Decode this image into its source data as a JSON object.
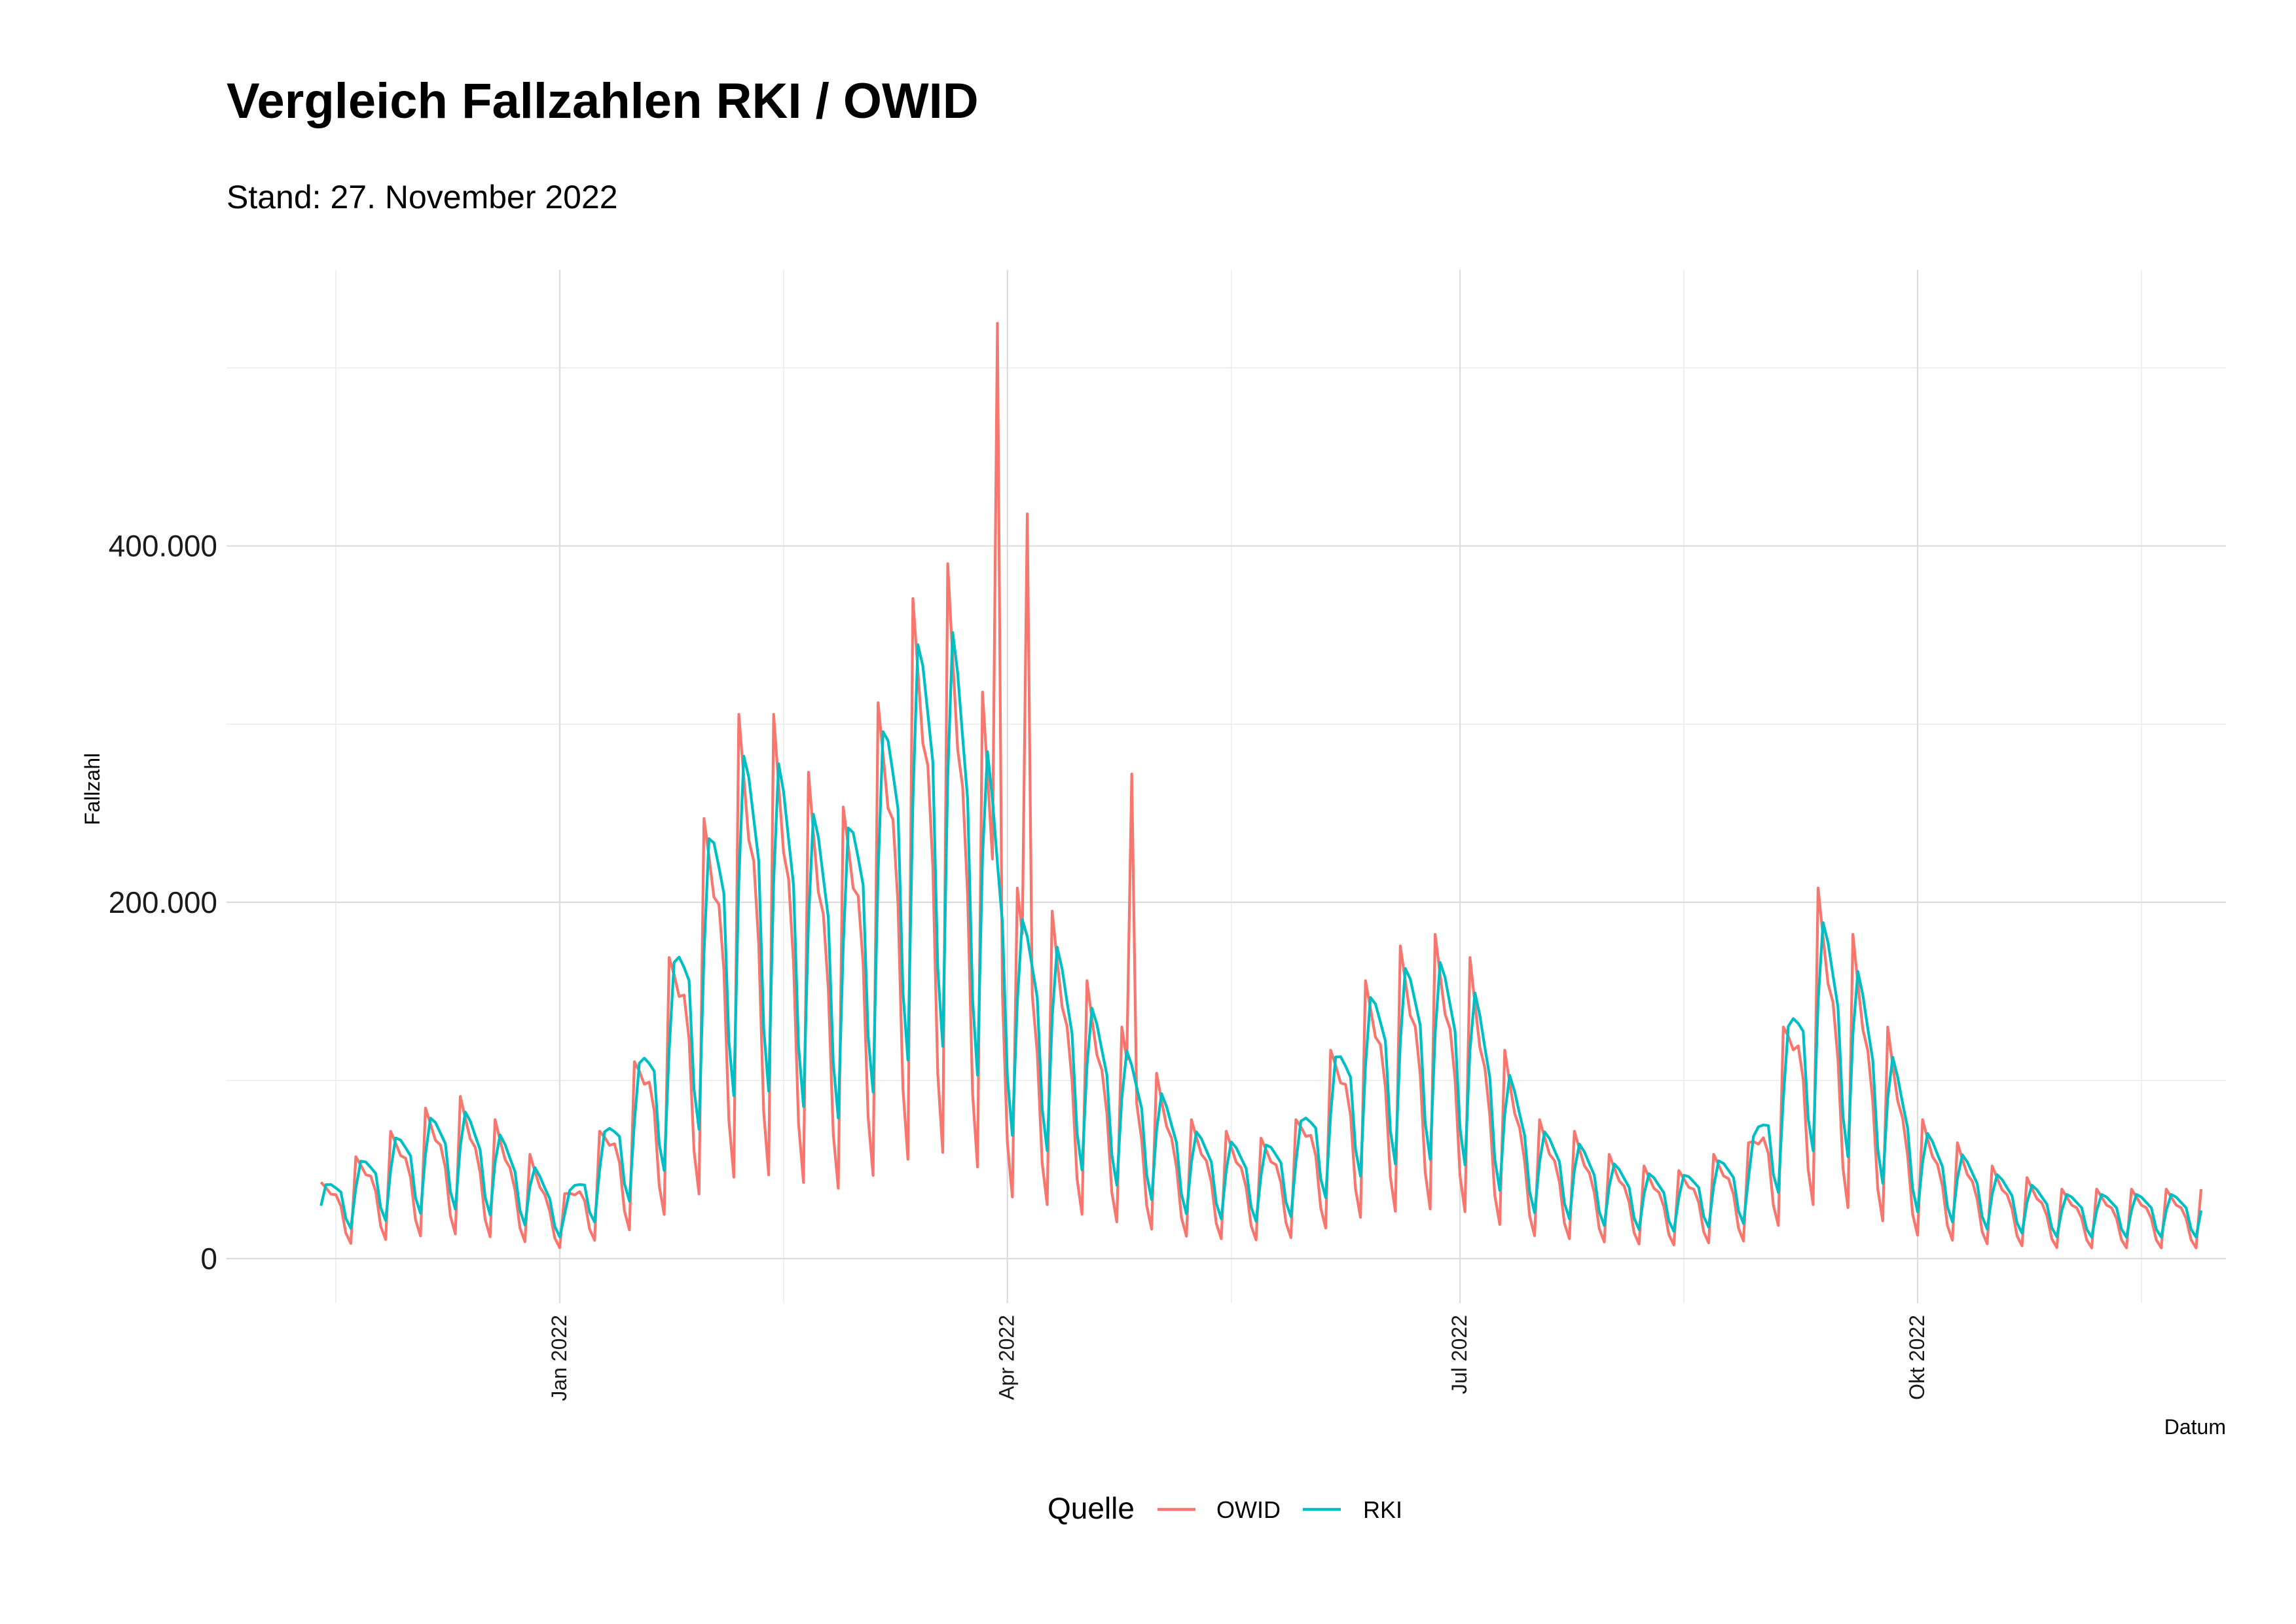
{
  "chart_data": {
    "type": "line",
    "title": "Vergleich Fallzahlen  RKI / OWID",
    "subtitle": "Stand: 27. November 2022",
    "xlabel": "Datum",
    "ylabel": "Fallzahl",
    "x_tick_labels": [
      "Jan 2022",
      "Apr 2022",
      "Jul 2022",
      "Okt 2022"
    ],
    "x_tick_dates": [
      "2022-01-01",
      "2022-04-01",
      "2022-07-01",
      "2022-10-01"
    ],
    "x_range": [
      "2021-10-26",
      "2022-12-02"
    ],
    "y_tick_labels": [
      "0",
      "200.000",
      "400.000"
    ],
    "y_tick_values": [
      0,
      200000,
      400000
    ],
    "ylim": [
      -25000,
      555000
    ],
    "grid": true,
    "legend": {
      "title": "Quelle",
      "position": "bottom",
      "entries": [
        "OWID",
        "RKI"
      ]
    },
    "series": [
      {
        "name": "OWID",
        "color": "#F8766D",
        "start_date": "2021-11-14",
        "end_date": "2022-11-27",
        "step": "day",
        "weekly_pattern": [
          1.3,
          1.15,
          1.0,
          0.95,
          0.75,
          0.35,
          0.2
        ],
        "weekly_level": [
          33000,
          44000,
          55000,
          65000,
          70000,
          60000,
          45000,
          28000,
          55000,
          85000,
          130000,
          190000,
          235000,
          235000,
          210000,
          195000,
          240000,
          285000,
          300000,
          250000,
          160000,
          150000,
          120000,
          100000,
          80000,
          60000,
          55000,
          52000,
          60000,
          90000,
          120000,
          135000,
          140000,
          130000,
          90000,
          60000,
          55000,
          45000,
          40000,
          38000,
          45000,
          50000,
          100000,
          160000,
          140000,
          100000,
          60000,
          50000,
          40000,
          35000,
          30000
        ],
        "spikes": [
          {
            "date": "2022-03-30",
            "value": 525000
          },
          {
            "date": "2022-04-05",
            "value": 418000
          },
          {
            "date": "2022-04-26",
            "value": 272000
          },
          {
            "date": "2022-03-27",
            "value": 318000
          }
        ]
      },
      {
        "name": "RKI",
        "color": "#00BFC4",
        "start_date": "2021-11-14",
        "end_date": "2022-11-27",
        "step": "day",
        "weekly_pattern": [
          0.9,
          1.2,
          1.15,
          1.05,
          0.95,
          0.55,
          0.4
        ],
        "weekly_level": [
          33000,
          44000,
          55000,
          65000,
          70000,
          60000,
          45000,
          28000,
          55000,
          85000,
          130000,
          190000,
          235000,
          235000,
          210000,
          195000,
          240000,
          285000,
          300000,
          250000,
          160000,
          150000,
          120000,
          100000,
          80000,
          60000,
          55000,
          52000,
          60000,
          90000,
          120000,
          135000,
          140000,
          130000,
          90000,
          60000,
          55000,
          45000,
          40000,
          38000,
          45000,
          50000,
          100000,
          160000,
          140000,
          100000,
          60000,
          50000,
          40000,
          35000,
          30000
        ]
      }
    ]
  }
}
